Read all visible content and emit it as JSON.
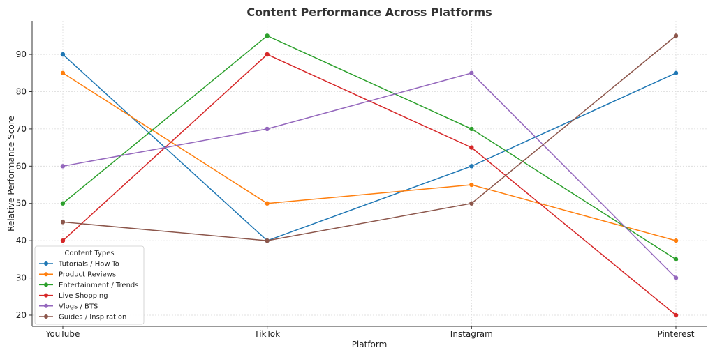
{
  "chart_data": {
    "type": "line",
    "title": "Content Performance Across Platforms",
    "xlabel": "Platform",
    "ylabel": "Relative Performance Score",
    "categories": [
      "YouTube",
      "TikTok",
      "Instagram",
      "Pinterest"
    ],
    "ylim": [
      17,
      99
    ],
    "yticks": [
      20,
      30,
      40,
      50,
      60,
      70,
      80,
      90
    ],
    "grid": true,
    "legend": {
      "title": "Content Types",
      "placement": "lower-left"
    },
    "series": [
      {
        "name": "Tutorials / How-To",
        "color": "#1f77b4",
        "values": [
          90,
          40,
          60,
          85
        ]
      },
      {
        "name": "Product Reviews",
        "color": "#ff7f0e",
        "values": [
          85,
          50,
          55,
          40
        ]
      },
      {
        "name": "Entertainment / Trends",
        "color": "#2ca02c",
        "values": [
          50,
          95,
          70,
          35
        ]
      },
      {
        "name": "Live Shopping",
        "color": "#d62728",
        "values": [
          40,
          90,
          65,
          20
        ]
      },
      {
        "name": "Vlogs / BTS",
        "color": "#9467bd",
        "values": [
          60,
          70,
          85,
          30
        ]
      },
      {
        "name": "Guides / Inspiration",
        "color": "#8c564b",
        "values": [
          45,
          40,
          50,
          95
        ]
      }
    ]
  }
}
